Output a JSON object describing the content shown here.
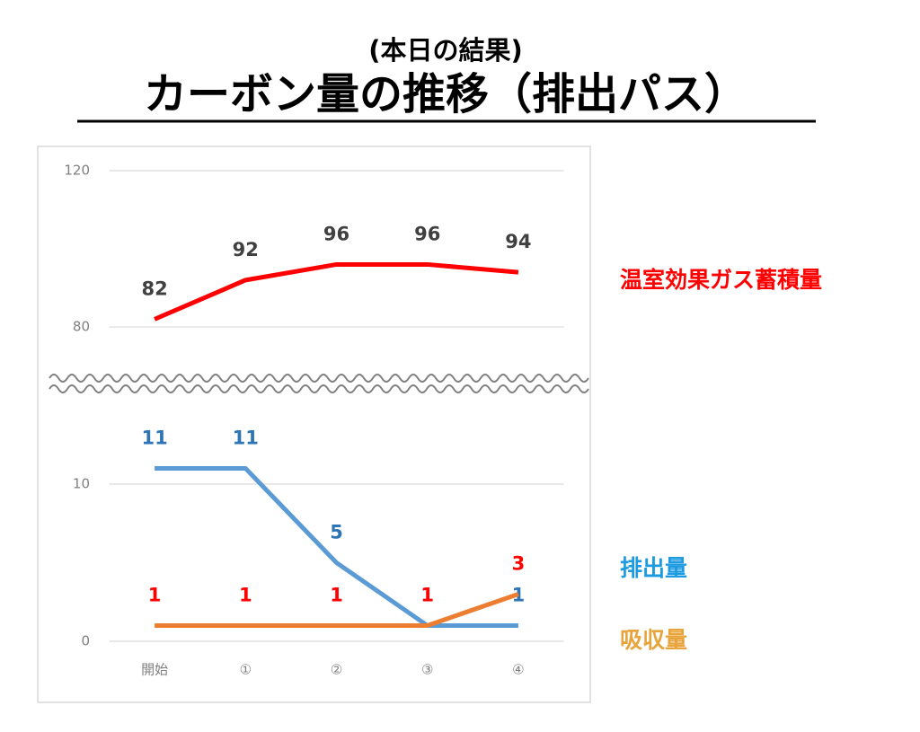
{
  "chart_data": {
    "type": "line",
    "subtitle": "(本日の結果)",
    "title": "カーボン量の推移（排出パス）",
    "categories": [
      "開始",
      "①",
      "②",
      "③",
      "④"
    ],
    "series": [
      {
        "name": "温室効果ガス蓄積量",
        "color": "#ff0000",
        "label_color": "#404040",
        "legend_color": "#ff0000",
        "values": [
          82,
          92,
          96,
          96,
          94
        ]
      },
      {
        "name": "排出量",
        "color": "#5b9bd5",
        "label_color": "#2e75b6",
        "legend_color": "#1e9be0",
        "values": [
          11,
          11,
          5,
          1,
          1
        ]
      },
      {
        "name": "吸収量",
        "color": "#ed7d31",
        "label_color": "#ff0000",
        "legend_color": "#e8a33a",
        "values": [
          1,
          1,
          1,
          1,
          3
        ]
      }
    ],
    "ylim": [
      0,
      120
    ],
    "axis_break": [
      16,
      66
    ],
    "yticks": [
      0,
      10,
      80,
      120
    ],
    "grid": true
  }
}
